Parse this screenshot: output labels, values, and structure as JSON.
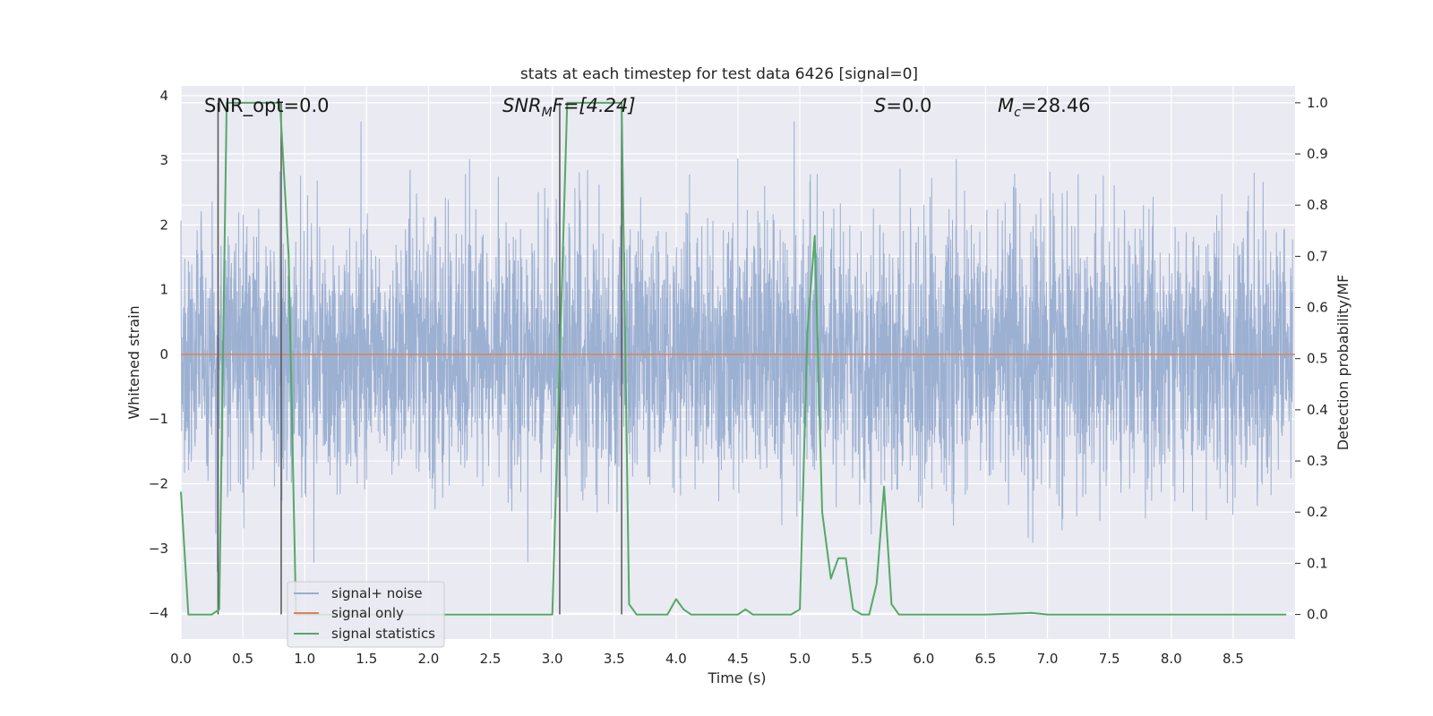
{
  "chart_data": {
    "type": "line",
    "title": "stats at each timestep for test data 6426 [signal=0]",
    "xlabel": "Time (s)",
    "ylabel": "Whitened strain",
    "y2label": "Detection probability/MF",
    "xlim": [
      0.0,
      9.0
    ],
    "ylim": [
      -4.4,
      4.15
    ],
    "y2lim": [
      -0.048,
      1.033
    ],
    "x_ticks": [
      "0.0",
      "0.5",
      "1.0",
      "1.5",
      "2.0",
      "2.5",
      "3.0",
      "3.5",
      "4.0",
      "4.5",
      "5.0",
      "5.5",
      "6.0",
      "6.5",
      "7.0",
      "7.5",
      "8.0",
      "8.5"
    ],
    "y_ticks": [
      "4",
      "3",
      "2",
      "1",
      "0",
      "−1",
      "−2",
      "−3",
      "−4"
    ],
    "y2_ticks": [
      "1.0",
      "0.9",
      "0.8",
      "0.7",
      "0.6",
      "0.5",
      "0.4",
      "0.3",
      "0.2",
      "0.1",
      "0.0"
    ],
    "grid": true,
    "legend_position": "lower-left",
    "annotations": {
      "snr_opt": "SNR_opt=0.0",
      "snr_mf_base": "SNR",
      "snr_mf_sub": "M",
      "snr_mf_rest": "F=[4.24]",
      "s_label": "S",
      "s_value": "=0.0",
      "mc_base": "M",
      "mc_sub": "c",
      "mc_value": "=28.46"
    },
    "series": [
      {
        "name": "signal+ noise",
        "color": "#98add0",
        "axis": "left",
        "description": "whitened noise strain, approx. gaussian, range about -3.5 to 3.6"
      },
      {
        "name": "signal only",
        "color": "#dd8452",
        "axis": "left",
        "x": [
          0.0,
          9.0
        ],
        "y": [
          0.0,
          0.0
        ]
      },
      {
        "name": "signal statistics",
        "color": "#55a868",
        "axis": "right",
        "x": [
          0.0,
          0.06,
          0.12,
          0.18,
          0.25,
          0.31,
          0.37,
          0.43,
          0.5,
          0.56,
          0.62,
          0.68,
          0.74,
          0.8,
          0.87,
          0.93,
          1.0,
          1.5,
          2.0,
          2.5,
          3.0,
          3.06,
          3.12,
          3.18,
          3.25,
          3.31,
          3.37,
          3.43,
          3.5,
          3.56,
          3.62,
          3.68,
          3.74,
          3.8,
          3.87,
          3.93,
          4.0,
          4.06,
          4.12,
          4.18,
          4.25,
          4.31,
          4.37,
          4.43,
          4.5,
          4.56,
          4.62,
          4.68,
          4.74,
          4.8,
          4.87,
          4.93,
          5.0,
          5.06,
          5.12,
          5.18,
          5.25,
          5.31,
          5.37,
          5.43,
          5.5,
          5.56,
          5.62,
          5.68,
          5.74,
          5.8,
          5.87,
          5.93,
          6.0,
          6.5,
          6.87,
          7.0,
          7.5,
          8.0,
          8.5,
          8.93
        ],
        "y": [
          0.24,
          0.0,
          0.0,
          0.0,
          0.0,
          0.01,
          1.0,
          1.0,
          1.0,
          1.0,
          1.0,
          1.0,
          1.0,
          1.0,
          0.7,
          0.0,
          0.0,
          0.0,
          0.0,
          0.0,
          0.0,
          0.5,
          1.0,
          1.0,
          1.0,
          1.0,
          1.0,
          1.0,
          1.0,
          1.0,
          0.02,
          0.0,
          0.0,
          0.0,
          0.0,
          0.0,
          0.03,
          0.01,
          0.0,
          0.0,
          0.0,
          0.0,
          0.0,
          0.0,
          0.0,
          0.01,
          0.0,
          0.0,
          0.0,
          0.0,
          0.0,
          0.0,
          0.01,
          0.55,
          0.74,
          0.2,
          0.07,
          0.11,
          0.11,
          0.01,
          0.0,
          0.0,
          0.06,
          0.25,
          0.02,
          0.0,
          0.0,
          0.0,
          0.0,
          0.0,
          0.003,
          0.0,
          0.0,
          0.0,
          0.0,
          0.0
        ]
      }
    ],
    "vertical_markers": [
      0.3,
      0.81,
      3.06,
      3.56
    ]
  }
}
